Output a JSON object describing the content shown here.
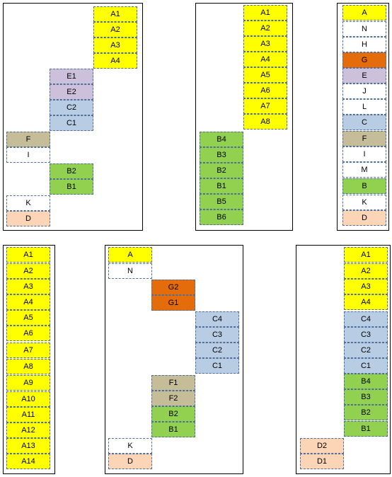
{
  "palette": {
    "A": "#ffff00",
    "B": "#92d050",
    "C": "#b8cce4",
    "D": "#fbd5b5",
    "E": "#ccc0da",
    "F": "#c4bd97",
    "G": "#e46c0a",
    "W": "#ffffff",
    "border": "#4f6f9a"
  },
  "panels": [
    {
      "id": "panel-1",
      "cells": [
        {
          "label": "A1",
          "color": "A"
        },
        {
          "label": "A2",
          "color": "A"
        },
        {
          "label": "A3",
          "color": "A"
        },
        {
          "label": "A4",
          "color": "A"
        },
        {
          "label": "E1",
          "color": "E"
        },
        {
          "label": "E2",
          "color": "E"
        },
        {
          "label": "C2",
          "color": "C"
        },
        {
          "label": "C1",
          "color": "C"
        },
        {
          "label": "F",
          "color": "F"
        },
        {
          "label": "I",
          "color": "W"
        },
        {
          "label": "B2",
          "color": "B"
        },
        {
          "label": "B1",
          "color": "B"
        },
        {
          "label": "K",
          "color": "W"
        },
        {
          "label": "D",
          "color": "D"
        }
      ]
    },
    {
      "id": "panel-2",
      "cells": [
        {
          "label": "A1",
          "color": "A"
        },
        {
          "label": "A2",
          "color": "A"
        },
        {
          "label": "A3",
          "color": "A"
        },
        {
          "label": "A4",
          "color": "A"
        },
        {
          "label": "A5",
          "color": "A"
        },
        {
          "label": "A6",
          "color": "A"
        },
        {
          "label": "A7",
          "color": "A"
        },
        {
          "label": "A8",
          "color": "A"
        },
        {
          "label": "B4",
          "color": "B"
        },
        {
          "label": "B3",
          "color": "B"
        },
        {
          "label": "B2",
          "color": "B"
        },
        {
          "label": "B1",
          "color": "B"
        },
        {
          "label": "B5",
          "color": "B"
        },
        {
          "label": "B6",
          "color": "B"
        }
      ]
    },
    {
      "id": "panel-3",
      "cells": [
        {
          "label": "A",
          "color": "A"
        },
        {
          "label": "N",
          "color": "W"
        },
        {
          "label": "H",
          "color": "W"
        },
        {
          "label": "G",
          "color": "G"
        },
        {
          "label": "E",
          "color": "E"
        },
        {
          "label": "J",
          "color": "W"
        },
        {
          "label": "L",
          "color": "W"
        },
        {
          "label": "C",
          "color": "C"
        },
        {
          "label": "F",
          "color": "F"
        },
        {
          "label": "I",
          "color": "W"
        },
        {
          "label": "M",
          "color": "W"
        },
        {
          "label": "B",
          "color": "B"
        },
        {
          "label": "K",
          "color": "W"
        },
        {
          "label": "D",
          "color": "D"
        }
      ]
    },
    {
      "id": "panel-4",
      "cells": [
        {
          "label": "A1",
          "color": "A"
        },
        {
          "label": "A2",
          "color": "A"
        },
        {
          "label": "A3",
          "color": "A"
        },
        {
          "label": "A4",
          "color": "A"
        },
        {
          "label": "A5",
          "color": "A"
        },
        {
          "label": "A6",
          "color": "A"
        },
        {
          "label": "A7",
          "color": "A"
        },
        {
          "label": "A8",
          "color": "A"
        },
        {
          "label": "A9",
          "color": "A"
        },
        {
          "label": "A10",
          "color": "A"
        },
        {
          "label": "A11",
          "color": "A"
        },
        {
          "label": "A12",
          "color": "A"
        },
        {
          "label": "A13",
          "color": "A"
        },
        {
          "label": "A14",
          "color": "A"
        }
      ]
    },
    {
      "id": "panel-5",
      "cells": [
        {
          "label": "A",
          "color": "A"
        },
        {
          "label": "N",
          "color": "W"
        },
        {
          "label": "G2",
          "color": "G"
        },
        {
          "label": "G1",
          "color": "G"
        },
        {
          "label": "C4",
          "color": "C"
        },
        {
          "label": "C3",
          "color": "C"
        },
        {
          "label": "C2",
          "color": "C"
        },
        {
          "label": "C1",
          "color": "C"
        },
        {
          "label": "F1",
          "color": "F"
        },
        {
          "label": "F2",
          "color": "F"
        },
        {
          "label": "B2",
          "color": "B"
        },
        {
          "label": "B1",
          "color": "B"
        },
        {
          "label": "K",
          "color": "W"
        },
        {
          "label": "D",
          "color": "D"
        }
      ]
    },
    {
      "id": "panel-6",
      "cells": [
        {
          "label": "A1",
          "color": "A"
        },
        {
          "label": "A2",
          "color": "A"
        },
        {
          "label": "A3",
          "color": "A"
        },
        {
          "label": "A4",
          "color": "A"
        },
        {
          "label": "C4",
          "color": "C"
        },
        {
          "label": "C3",
          "color": "C"
        },
        {
          "label": "C2",
          "color": "C"
        },
        {
          "label": "C1",
          "color": "C"
        },
        {
          "label": "B4",
          "color": "B"
        },
        {
          "label": "B3",
          "color": "B"
        },
        {
          "label": "B2",
          "color": "B"
        },
        {
          "label": "B1",
          "color": "B"
        },
        {
          "label": "D2",
          "color": "D"
        },
        {
          "label": "D1",
          "color": "D"
        }
      ]
    }
  ]
}
